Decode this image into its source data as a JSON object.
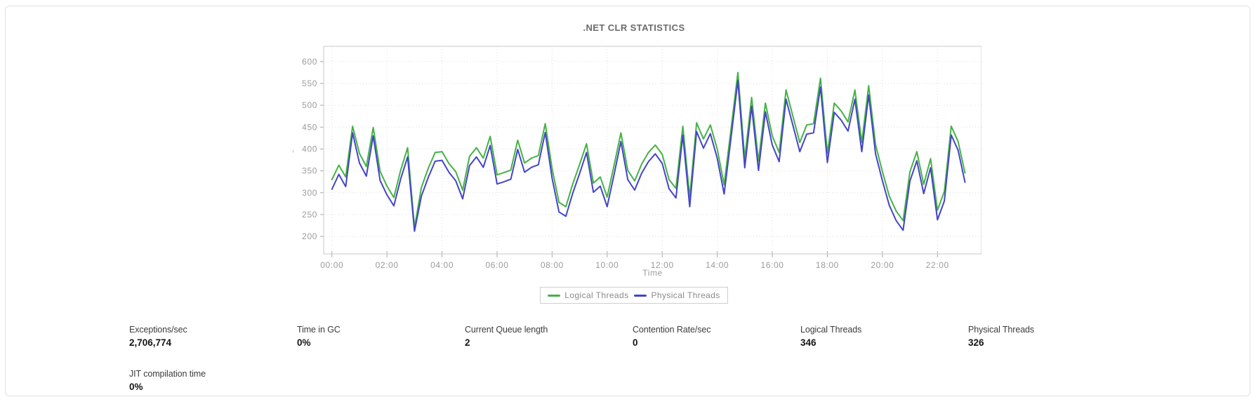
{
  "chart": {
    "title": ".NET CLR STATISTICS",
    "legend": [
      {
        "label": "Logical Threads",
        "color": "#44b244"
      },
      {
        "label": "Physical Threads",
        "color": "#4444c8"
      }
    ]
  },
  "chart_data": {
    "type": "line",
    "title": ".NET CLR STATISTICS",
    "xlabel": "Time",
    "ylabel": ",",
    "x_start": "00:00",
    "x_interval_minutes": 15,
    "x_tick_labels": [
      "00:00",
      "02:00",
      "04:00",
      "06:00",
      "08:00",
      "10:00",
      "12:00",
      "14:00",
      "16:00",
      "18:00",
      "20:00",
      "22:00"
    ],
    "x_tick_interval_minutes": 120,
    "xlim_minutes": [
      -18,
      1416
    ],
    "y_ticks": [
      200,
      250,
      300,
      350,
      400,
      450,
      500,
      550,
      600
    ],
    "ylim": [
      160,
      635
    ],
    "grid": true,
    "legend_position": "bottom",
    "colors": {
      "grid": "#dedede",
      "border": "#c8c8c8",
      "tick": "#aaaaaa"
    },
    "series": [
      {
        "name": "Logical Threads",
        "color": "#44b244",
        "values": [
          330,
          363,
          336,
          452,
          390,
          360,
          449,
          349,
          315,
          289,
          352,
          403,
          220,
          312,
          356,
          392,
          394,
          367,
          348,
          306,
          383,
          403,
          379,
          429,
          341,
          346,
          352,
          420,
          368,
          379,
          385,
          458,
          355,
          278,
          268,
          320,
          365,
          412,
          322,
          336,
          290,
          362,
          437,
          351,
          327,
          365,
          392,
          409,
          388,
          330,
          310,
          452,
          290,
          460,
          423,
          455,
          400,
          318,
          445,
          575,
          378,
          518,
          372,
          505,
          430,
          392,
          535,
          475,
          415,
          455,
          458,
          562,
          390,
          505,
          487,
          462,
          535,
          415,
          545,
          410,
          348,
          292,
          258,
          236,
          348,
          394,
          319,
          378,
          260,
          303,
          452,
          417,
          345
        ]
      },
      {
        "name": "Physical Threads",
        "color": "#4444c8",
        "values": [
          308,
          342,
          314,
          437,
          368,
          338,
          430,
          328,
          295,
          270,
          332,
          382,
          212,
          292,
          335,
          372,
          374,
          347,
          327,
          286,
          362,
          382,
          358,
          408,
          320,
          325,
          331,
          399,
          347,
          358,
          364,
          438,
          333,
          256,
          246,
          299,
          344,
          392,
          301,
          315,
          268,
          341,
          417,
          330,
          306,
          344,
          371,
          389,
          367,
          309,
          288,
          432,
          268,
          440,
          402,
          435,
          379,
          297,
          425,
          557,
          357,
          498,
          351,
          485,
          409,
          371,
          514,
          454,
          394,
          434,
          437,
          542,
          369,
          484,
          466,
          441,
          514,
          394,
          524,
          389,
          327,
          271,
          236,
          214,
          327,
          373,
          298,
          357,
          238,
          281,
          432,
          397,
          324
        ]
      }
    ]
  },
  "stats": {
    "items": [
      {
        "label": "Exceptions/sec",
        "value": "2,706,774"
      },
      {
        "label": "Time in GC",
        "value": "0%"
      },
      {
        "label": "Current Queue length",
        "value": "2"
      },
      {
        "label": "Contention Rate/sec",
        "value": "0"
      },
      {
        "label": "Logical Threads",
        "value": "346"
      },
      {
        "label": "Physical Threads",
        "value": "326"
      }
    ],
    "row2": [
      {
        "label": "JIT compilation time",
        "value": "0%"
      }
    ]
  }
}
